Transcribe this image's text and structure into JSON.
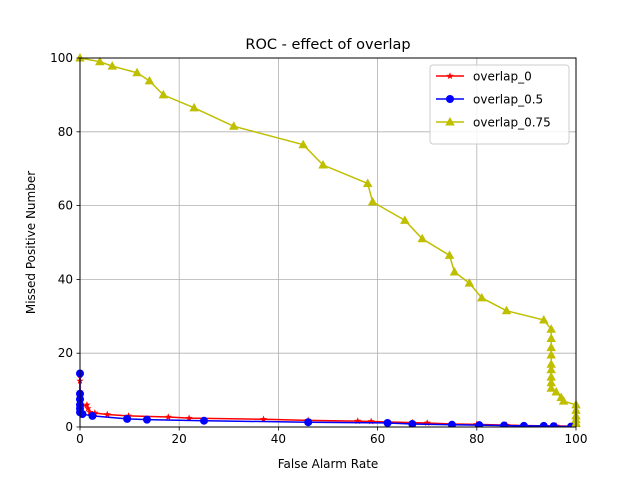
{
  "chart_data": {
    "type": "line",
    "title": "ROC - effect of overlap",
    "xlabel": "False Alarm Rate",
    "ylabel": "Missed Positive Number",
    "xlim": [
      0,
      100
    ],
    "ylim": [
      0,
      100
    ],
    "xticks": [
      0,
      20,
      40,
      60,
      80,
      100
    ],
    "yticks": [
      0,
      20,
      40,
      60,
      80,
      100
    ],
    "grid": true,
    "legend_position": "upper-right",
    "series": [
      {
        "name": "overlap_0",
        "color": "#ff0000",
        "marker": "star",
        "points": [
          [
            0,
            14
          ],
          [
            0,
            12.5
          ],
          [
            0,
            9.5
          ],
          [
            0,
            8
          ],
          [
            0,
            7
          ],
          [
            0,
            6
          ],
          [
            0.3,
            5.5
          ],
          [
            1.4,
            6
          ],
          [
            1.6,
            5
          ],
          [
            2,
            4
          ],
          [
            3,
            3.8
          ],
          [
            5.5,
            3.4
          ],
          [
            9.8,
            3
          ],
          [
            17.8,
            2.7
          ],
          [
            22,
            2.4
          ],
          [
            37,
            2.1
          ],
          [
            46,
            1.8
          ],
          [
            56,
            1.6
          ],
          [
            58.7,
            1.5
          ],
          [
            67,
            1.2
          ],
          [
            70,
            1.1
          ],
          [
            75,
            0.8
          ],
          [
            80,
            0.7
          ],
          [
            86,
            0.5
          ],
          [
            89.5,
            0.4
          ],
          [
            93.5,
            0.3
          ],
          [
            96,
            0.3
          ],
          [
            99,
            0.2
          ],
          [
            100,
            0.1
          ]
        ]
      },
      {
        "name": "overlap_0.5",
        "color": "#0000ff",
        "marker": "circle",
        "points": [
          [
            0,
            14.5
          ],
          [
            0,
            9
          ],
          [
            0,
            7.5
          ],
          [
            0,
            6
          ],
          [
            0,
            5
          ],
          [
            0,
            4
          ],
          [
            0.5,
            3.5
          ],
          [
            2.5,
            3
          ],
          [
            9.5,
            2.2
          ],
          [
            13.5,
            2
          ],
          [
            25,
            1.7
          ],
          [
            46,
            1.3
          ],
          [
            62,
            1.1
          ],
          [
            67,
            0.8
          ],
          [
            75,
            0.6
          ],
          [
            80.5,
            0.5
          ],
          [
            85.5,
            0.4
          ],
          [
            89.5,
            0.3
          ],
          [
            93.5,
            0.3
          ],
          [
            95.5,
            0.2
          ],
          [
            99,
            0.1
          ],
          [
            100,
            0.1
          ]
        ]
      },
      {
        "name": "overlap_0.75",
        "color": "#bfbf00",
        "marker": "triangle",
        "points": [
          [
            0,
            100
          ],
          [
            4,
            99
          ],
          [
            6.5,
            97.8
          ],
          [
            11.5,
            96
          ],
          [
            14,
            93.8
          ],
          [
            16.8,
            90
          ],
          [
            23,
            86.5
          ],
          [
            31,
            81.5
          ],
          [
            45,
            76.5
          ],
          [
            49,
            71
          ],
          [
            58,
            66
          ],
          [
            59,
            61
          ],
          [
            65.5,
            56
          ],
          [
            69,
            51
          ],
          [
            74.5,
            46.5
          ],
          [
            75.5,
            42
          ],
          [
            78.5,
            39
          ],
          [
            81,
            35
          ],
          [
            86,
            31.5
          ],
          [
            93.5,
            29
          ],
          [
            95,
            26.5
          ],
          [
            95,
            24
          ],
          [
            95,
            21.5
          ],
          [
            95,
            19.5
          ],
          [
            95,
            17
          ],
          [
            95,
            15.5
          ],
          [
            95,
            13.5
          ],
          [
            95,
            12
          ],
          [
            95,
            10.5
          ],
          [
            96,
            9.5
          ],
          [
            97,
            8
          ],
          [
            97.5,
            7
          ],
          [
            100,
            6
          ],
          [
            100,
            4.5
          ],
          [
            100,
            3
          ],
          [
            100,
            2
          ],
          [
            100,
            1
          ],
          [
            100,
            0
          ]
        ]
      }
    ]
  }
}
